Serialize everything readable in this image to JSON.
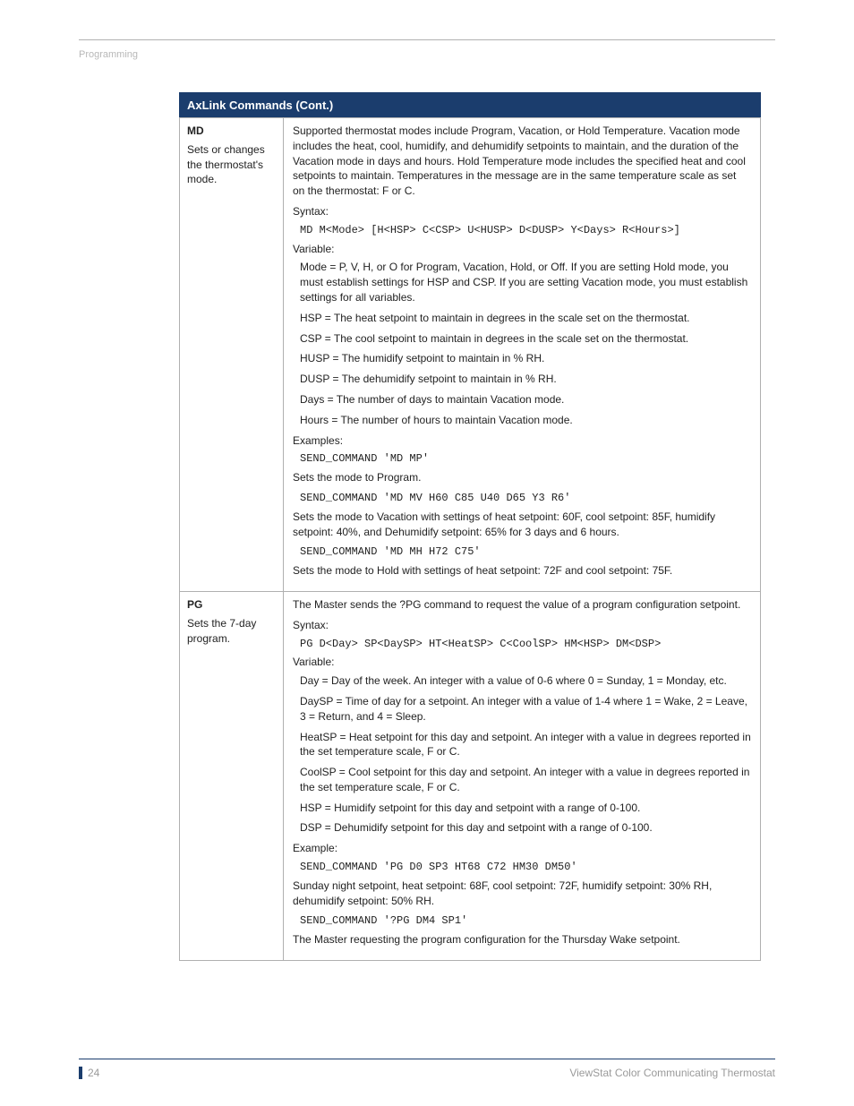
{
  "header": {
    "section": "Programming"
  },
  "table": {
    "title": "AxLink Commands (Cont.)",
    "rows": [
      {
        "cmd": "MD",
        "cmd_desc": "Sets or changes the thermostat's mode.",
        "content": {
          "intro": "Supported thermostat modes include Program, Vacation, or Hold Temperature. Vacation mode includes the heat, cool, humidify, and dehumidify setpoints to maintain, and the duration of the Vacation mode in days and hours. Hold Temperature mode includes the specified heat and cool setpoints to maintain. Temperatures in the message are in the same temperature scale as set on the thermostat: F or C.",
          "syntax_label": "Syntax:",
          "syntax": "MD M<Mode> [H<HSP> C<CSP> U<HUSP> D<DUSP> Y<Days> R<Hours>]",
          "variable_label": "Variable:",
          "variables": [
            "Mode = P, V, H, or O for Program, Vacation, Hold, or Off. If you are setting Hold mode, you must establish settings for HSP and CSP. If you are setting Vacation mode, you must establish settings for all variables.",
            "HSP = The heat setpoint to maintain in degrees in the scale set on the thermostat.",
            "CSP = The cool setpoint to maintain in degrees in the scale set on the thermostat.",
            "HUSP = The humidify setpoint to maintain in % RH.",
            "DUSP = The dehumidify setpoint to maintain in % RH.",
            "Days = The number of days to maintain Vacation mode.",
            "Hours = The number of hours to maintain Vacation mode."
          ],
          "examples_label": "Examples:",
          "ex1_code": "SEND_COMMAND 'MD MP'",
          "ex1_text": "Sets the mode to Program.",
          "ex2_code": "SEND_COMMAND 'MD MV H60 C85 U40 D65 Y3 R6'",
          "ex2_text": "Sets the mode to Vacation with settings of heat setpoint: 60F, cool setpoint: 85F, humidify setpoint: 40%, and Dehumidify setpoint: 65% for 3 days and 6 hours.",
          "ex3_code": "SEND_COMMAND 'MD MH H72 C75'",
          "ex3_text": "Sets the mode to Hold with settings of heat setpoint: 72F and cool setpoint: 75F."
        }
      },
      {
        "cmd": "PG",
        "cmd_desc": "Sets the 7-day program.",
        "content": {
          "intro": "The Master sends the ?PG command to request the value of a program configuration setpoint.",
          "syntax_label": "Syntax:",
          "syntax": "PG D<Day> SP<DaySP> HT<HeatSP> C<CoolSP> HM<HSP> DM<DSP>",
          "variable_label": "Variable:",
          "variables": [
            "Day = Day of the week. An integer with a value of 0-6 where 0 = Sunday, 1 = Monday, etc.",
            "DaySP = Time of day for a setpoint. An integer with a value of 1-4 where 1 = Wake, 2 = Leave, 3 = Return, and 4 = Sleep.",
            "HeatSP = Heat setpoint for this day and setpoint. An integer with a value in degrees reported in the set temperature scale, F or C.",
            "CoolSP = Cool setpoint for this day and setpoint. An integer with a value in degrees reported in the set temperature scale, F or C.",
            "HSP = Humidify setpoint for this day and setpoint with a range of 0-100.",
            "DSP = Dehumidify setpoint for this day and setpoint with a range of 0-100."
          ],
          "examples_label": "Example:",
          "ex1_code": "SEND_COMMAND 'PG D0 SP3 HT68 C72 HM30 DM50'",
          "ex1_text": "Sunday night setpoint, heat setpoint: 68F, cool setpoint: 72F, humidify setpoint: 30% RH, dehumidify setpoint: 50% RH.",
          "ex2_code": "SEND_COMMAND '?PG DM4 SP1'",
          "ex2_text": "The Master requesting the program configuration for the Thursday Wake setpoint."
        }
      }
    ]
  },
  "footer": {
    "page_number": "24",
    "doc_title": "ViewStat Color Communicating Thermostat"
  }
}
